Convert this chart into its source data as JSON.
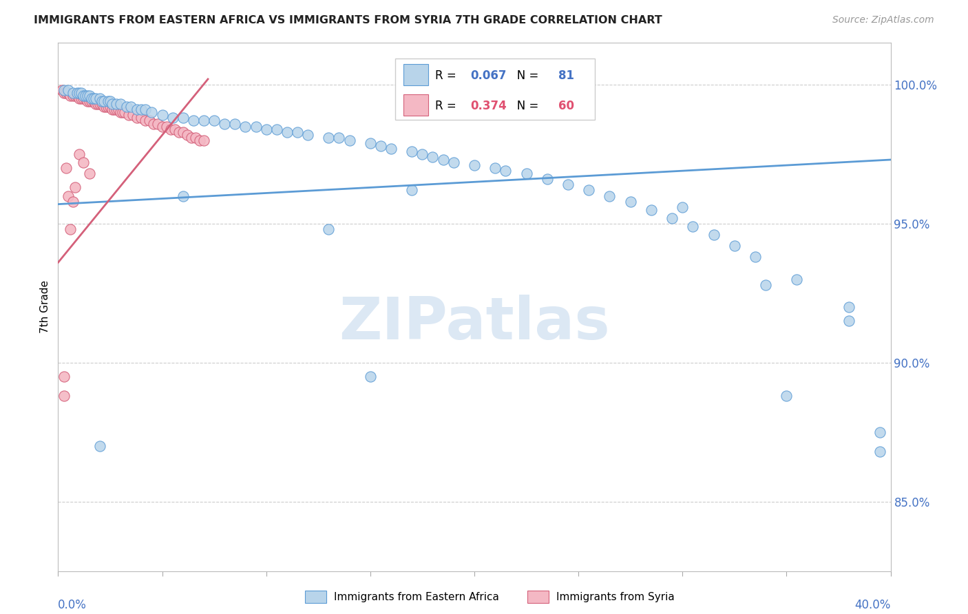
{
  "title": "IMMIGRANTS FROM EASTERN AFRICA VS IMMIGRANTS FROM SYRIA 7TH GRADE CORRELATION CHART",
  "source": "Source: ZipAtlas.com",
  "ylabel": "7th Grade",
  "legend1_R": "0.067",
  "legend1_N": "81",
  "legend2_R": "0.374",
  "legend2_N": "60",
  "color_blue_fill": "#b8d4ea",
  "color_blue_edge": "#5b9bd5",
  "color_pink_fill": "#f4b8c4",
  "color_pink_edge": "#d4607a",
  "color_blue_text": "#4472c4",
  "color_pink_text": "#e05070",
  "color_blue_line": "#5b9bd5",
  "color_pink_line": "#d4607a",
  "watermark_color": "#dce8f4",
  "x_range": [
    0.0,
    0.4
  ],
  "y_range": [
    0.825,
    1.015
  ],
  "y_ticks": [
    0.85,
    0.9,
    0.95,
    1.0
  ],
  "y_tick_labels": [
    "85.0%",
    "90.0%",
    "95.0%",
    "100.0%"
  ],
  "blue_trend_x": [
    0.0,
    0.4
  ],
  "blue_trend_y": [
    0.957,
    0.973
  ],
  "pink_trend_x": [
    0.0,
    0.072
  ],
  "pink_trend_y": [
    0.936,
    1.002
  ],
  "blue_points_x": [
    0.003,
    0.005,
    0.007,
    0.009,
    0.01,
    0.011,
    0.012,
    0.013,
    0.014,
    0.015,
    0.016,
    0.017,
    0.018,
    0.02,
    0.021,
    0.022,
    0.024,
    0.025,
    0.026,
    0.028,
    0.03,
    0.033,
    0.035,
    0.038,
    0.04,
    0.042,
    0.045,
    0.05,
    0.055,
    0.06,
    0.065,
    0.07,
    0.075,
    0.08,
    0.085,
    0.09,
    0.095,
    0.1,
    0.105,
    0.11,
    0.115,
    0.12,
    0.13,
    0.135,
    0.14,
    0.15,
    0.155,
    0.16,
    0.17,
    0.175,
    0.18,
    0.185,
    0.19,
    0.2,
    0.21,
    0.215,
    0.225,
    0.235,
    0.245,
    0.255,
    0.265,
    0.275,
    0.285,
    0.295,
    0.305,
    0.315,
    0.325,
    0.335,
    0.355,
    0.38,
    0.395,
    0.395,
    0.35,
    0.02,
    0.15,
    0.17,
    0.3,
    0.34,
    0.38,
    0.06,
    0.13
  ],
  "blue_points_y": [
    0.998,
    0.998,
    0.997,
    0.997,
    0.997,
    0.997,
    0.996,
    0.996,
    0.996,
    0.996,
    0.995,
    0.995,
    0.995,
    0.995,
    0.994,
    0.994,
    0.994,
    0.994,
    0.993,
    0.993,
    0.993,
    0.992,
    0.992,
    0.991,
    0.991,
    0.991,
    0.99,
    0.989,
    0.988,
    0.988,
    0.987,
    0.987,
    0.987,
    0.986,
    0.986,
    0.985,
    0.985,
    0.984,
    0.984,
    0.983,
    0.983,
    0.982,
    0.981,
    0.981,
    0.98,
    0.979,
    0.978,
    0.977,
    0.976,
    0.975,
    0.974,
    0.973,
    0.972,
    0.971,
    0.97,
    0.969,
    0.968,
    0.966,
    0.964,
    0.962,
    0.96,
    0.958,
    0.955,
    0.952,
    0.949,
    0.946,
    0.942,
    0.938,
    0.93,
    0.92,
    0.875,
    0.868,
    0.888,
    0.87,
    0.895,
    0.962,
    0.956,
    0.928,
    0.915,
    0.96,
    0.948
  ],
  "pink_points_x": [
    0.002,
    0.003,
    0.004,
    0.005,
    0.006,
    0.007,
    0.008,
    0.009,
    0.01,
    0.011,
    0.012,
    0.013,
    0.014,
    0.015,
    0.016,
    0.017,
    0.018,
    0.019,
    0.02,
    0.021,
    0.022,
    0.023,
    0.024,
    0.025,
    0.026,
    0.027,
    0.028,
    0.029,
    0.03,
    0.031,
    0.032,
    0.034,
    0.036,
    0.038,
    0.04,
    0.042,
    0.044,
    0.046,
    0.048,
    0.05,
    0.052,
    0.054,
    0.056,
    0.058,
    0.06,
    0.062,
    0.064,
    0.066,
    0.068,
    0.07,
    0.003,
    0.005,
    0.006,
    0.007,
    0.01,
    0.012,
    0.015,
    0.004,
    0.008,
    0.003
  ],
  "pink_points_y": [
    0.998,
    0.997,
    0.997,
    0.997,
    0.996,
    0.996,
    0.996,
    0.996,
    0.995,
    0.995,
    0.995,
    0.995,
    0.994,
    0.994,
    0.994,
    0.994,
    0.993,
    0.993,
    0.993,
    0.993,
    0.992,
    0.992,
    0.992,
    0.992,
    0.991,
    0.991,
    0.991,
    0.991,
    0.99,
    0.99,
    0.99,
    0.989,
    0.989,
    0.988,
    0.988,
    0.987,
    0.987,
    0.986,
    0.986,
    0.985,
    0.985,
    0.984,
    0.984,
    0.983,
    0.983,
    0.982,
    0.981,
    0.981,
    0.98,
    0.98,
    0.895,
    0.96,
    0.948,
    0.958,
    0.975,
    0.972,
    0.968,
    0.97,
    0.963,
    0.888
  ]
}
